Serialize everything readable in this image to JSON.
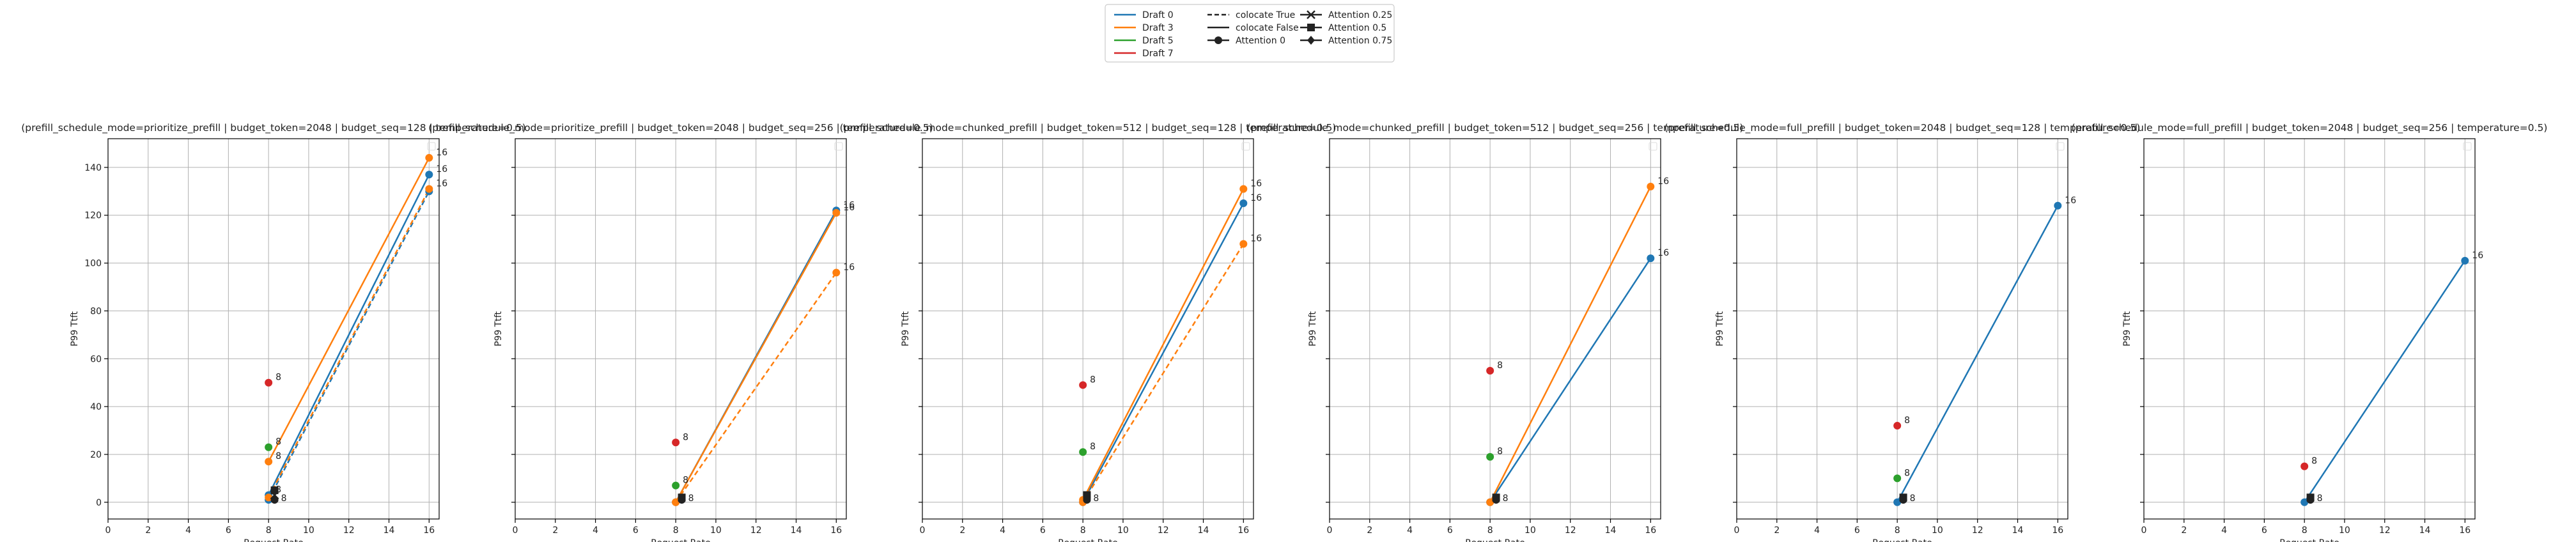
{
  "legend": {
    "placement": "top-center",
    "columns": [
      [
        {
          "label": "Draft 0",
          "kind": "color",
          "color": "#1f77b4"
        },
        {
          "label": "Draft 3",
          "kind": "color",
          "color": "#ff7f0e"
        },
        {
          "label": "Draft 5",
          "kind": "color",
          "color": "#2ca02c"
        },
        {
          "label": "Draft 7",
          "kind": "color",
          "color": "#d62728"
        }
      ],
      [
        {
          "label": "colocate True",
          "kind": "dash"
        },
        {
          "label": "colocate False",
          "kind": "solid"
        },
        {
          "label": "Attention 0",
          "kind": "marker",
          "marker": "circle"
        }
      ],
      [
        {
          "label": "Attention 0.25",
          "kind": "marker",
          "marker": "x"
        },
        {
          "label": "Attention 0.5",
          "kind": "marker",
          "marker": "square"
        },
        {
          "label": "Attention 0.75",
          "kind": "marker",
          "marker": "diamond"
        }
      ]
    ]
  },
  "colors": {
    "draft0": "#1f77b4",
    "draft3": "#ff7f0e",
    "draft5": "#2ca02c",
    "draft7": "#d62728",
    "attention": "#222222"
  },
  "chart_data": [
    {
      "type": "line",
      "title": "(prefill_schedule_mode=prioritize_prefill | budget_token=2048 | budget_seq=128 | temperature=0.5)",
      "xlabel": "Request Rate",
      "ylabel": "P99 Ttft",
      "xlim": [
        0,
        16.5
      ],
      "ylim": [
        -7,
        152
      ],
      "xticks": [
        0,
        2,
        4,
        6,
        8,
        10,
        12,
        14,
        16
      ],
      "yticks": [
        0,
        20,
        40,
        60,
        80,
        100,
        120,
        140
      ],
      "grid": true,
      "series": [
        {
          "draft": 0,
          "colocate": false,
          "color": "#1f77b4",
          "points": [
            {
              "x": 8,
              "y": 3,
              "label": "8"
            },
            {
              "x": 16,
              "y": 137,
              "label": "16"
            }
          ]
        },
        {
          "draft": 0,
          "colocate": true,
          "color": "#1f77b4",
          "points": [
            {
              "x": 8,
              "y": 1
            },
            {
              "x": 16,
              "y": 130
            }
          ]
        },
        {
          "draft": 3,
          "colocate": false,
          "color": "#ff7f0e",
          "points": [
            {
              "x": 8,
              "y": 17,
              "label": "8"
            },
            {
              "x": 16,
              "y": 144,
              "label": "16"
            }
          ]
        },
        {
          "draft": 3,
          "colocate": true,
          "color": "#ff7f0e",
          "points": [
            {
              "x": 8,
              "y": 2
            },
            {
              "x": 16,
              "y": 131,
              "label": "16"
            }
          ]
        },
        {
          "draft": 5,
          "color": "#2ca02c",
          "points": [
            {
              "x": 8,
              "y": 23,
              "label": "8"
            }
          ]
        },
        {
          "draft": 7,
          "color": "#d62728",
          "points": [
            {
              "x": 8,
              "y": 50,
              "label": "8"
            }
          ]
        }
      ],
      "attention_points": [
        {
          "x": 8.3,
          "y": 1,
          "marker": "circle",
          "label": "8"
        },
        {
          "x": 8.3,
          "y": 3,
          "marker": "x"
        },
        {
          "x": 8.3,
          "y": 5,
          "marker": "square"
        }
      ]
    },
    {
      "type": "line",
      "title": "(prefill_schedule_mode=prioritize_prefill | budget_token=2048 | budget_seq=256 | temperature=0.5)",
      "xlabel": "Request Rate",
      "ylabel": "P99 Ttft",
      "xlim": [
        0,
        16.5
      ],
      "ylim": [
        -7,
        152
      ],
      "xticks": [
        0,
        2,
        4,
        6,
        8,
        10,
        12,
        14,
        16
      ],
      "yticks": [
        0,
        20,
        40,
        60,
        80,
        100,
        120,
        140
      ],
      "grid": true,
      "series": [
        {
          "draft": 0,
          "colocate": false,
          "color": "#1f77b4",
          "points": [
            {
              "x": 8,
              "y": 0
            },
            {
              "x": 16,
              "y": 122,
              "label": "16"
            }
          ]
        },
        {
          "draft": 3,
          "colocate": false,
          "color": "#ff7f0e",
          "points": [
            {
              "x": 8,
              "y": 0
            },
            {
              "x": 16,
              "y": 121,
              "label": "16"
            }
          ]
        },
        {
          "draft": 3,
          "colocate": true,
          "color": "#ff7f0e",
          "points": [
            {
              "x": 8,
              "y": 0
            },
            {
              "x": 16,
              "y": 96,
              "label": "16"
            }
          ]
        },
        {
          "draft": 5,
          "color": "#2ca02c",
          "points": [
            {
              "x": 8,
              "y": 7,
              "label": "8"
            }
          ]
        },
        {
          "draft": 7,
          "color": "#d62728",
          "points": [
            {
              "x": 8,
              "y": 25,
              "label": "8"
            }
          ]
        }
      ],
      "attention_points": [
        {
          "x": 8.3,
          "y": 1,
          "marker": "circle",
          "label": "8"
        },
        {
          "x": 8.3,
          "y": 2,
          "marker": "square"
        }
      ]
    },
    {
      "type": "line",
      "title": "(prefill_schedule_mode=chunked_prefill | budget_token=512 | budget_seq=128 | temperature=0.5)",
      "xlabel": "Request Rate",
      "ylabel": "P99 Ttft",
      "xlim": [
        0,
        16.5
      ],
      "ylim": [
        -7,
        152
      ],
      "xticks": [
        0,
        2,
        4,
        6,
        8,
        10,
        12,
        14,
        16
      ],
      "yticks": [
        0,
        20,
        40,
        60,
        80,
        100,
        120,
        140
      ],
      "grid": true,
      "series": [
        {
          "draft": 0,
          "colocate": false,
          "color": "#1f77b4",
          "points": [
            {
              "x": 8,
              "y": 0
            },
            {
              "x": 16,
              "y": 125,
              "label": "16"
            }
          ]
        },
        {
          "draft": 3,
          "colocate": false,
          "color": "#ff7f0e",
          "points": [
            {
              "x": 8,
              "y": 1
            },
            {
              "x": 16,
              "y": 131,
              "label": "16"
            }
          ]
        },
        {
          "draft": 3,
          "colocate": true,
          "color": "#ff7f0e",
          "points": [
            {
              "x": 8,
              "y": 0
            },
            {
              "x": 16,
              "y": 108,
              "label": "16"
            }
          ]
        },
        {
          "draft": 5,
          "color": "#2ca02c",
          "points": [
            {
              "x": 8,
              "y": 21,
              "label": "8"
            }
          ]
        },
        {
          "draft": 7,
          "color": "#d62728",
          "points": [
            {
              "x": 8,
              "y": 49,
              "label": "8"
            }
          ]
        }
      ],
      "attention_points": [
        {
          "x": 8.2,
          "y": 1,
          "marker": "circle",
          "label": "8"
        },
        {
          "x": 8.2,
          "y": 3,
          "marker": "square"
        }
      ]
    },
    {
      "type": "line",
      "title": "(prefill_schedule_mode=chunked_prefill | budget_token=512 | budget_seq=256 | temperature=0.5)",
      "xlabel": "Request Rate",
      "ylabel": "P99 Ttft",
      "xlim": [
        0,
        16.5
      ],
      "ylim": [
        -7,
        152
      ],
      "xticks": [
        0,
        2,
        4,
        6,
        8,
        10,
        12,
        14,
        16
      ],
      "yticks": [
        0,
        20,
        40,
        60,
        80,
        100,
        120,
        140
      ],
      "grid": true,
      "series": [
        {
          "draft": 0,
          "colocate": false,
          "color": "#1f77b4",
          "points": [
            {
              "x": 8,
              "y": 0
            },
            {
              "x": 16,
              "y": 102,
              "label": "16"
            }
          ]
        },
        {
          "draft": 3,
          "colocate": false,
          "color": "#ff7f0e",
          "points": [
            {
              "x": 8,
              "y": 0
            },
            {
              "x": 16,
              "y": 132,
              "label": "16"
            }
          ]
        },
        {
          "draft": 5,
          "color": "#2ca02c",
          "points": [
            {
              "x": 8,
              "y": 19,
              "label": "8"
            }
          ]
        },
        {
          "draft": 7,
          "color": "#d62728",
          "points": [
            {
              "x": 8,
              "y": 55,
              "label": "8"
            }
          ]
        }
      ],
      "attention_points": [
        {
          "x": 8.3,
          "y": 1,
          "marker": "circle",
          "label": "8"
        },
        {
          "x": 8.3,
          "y": 2,
          "marker": "square"
        }
      ]
    },
    {
      "type": "line",
      "title": "(prefill_schedule_mode=full_prefill | budget_token=2048 | budget_seq=128 | temperature=0.5)",
      "xlabel": "Request Rate",
      "ylabel": "P99 Ttft",
      "xlim": [
        0,
        16.5
      ],
      "ylim": [
        -7,
        152
      ],
      "xticks": [
        0,
        2,
        4,
        6,
        8,
        10,
        12,
        14,
        16
      ],
      "yticks": [
        0,
        20,
        40,
        60,
        80,
        100,
        120,
        140
      ],
      "grid": true,
      "series": [
        {
          "draft": 0,
          "colocate": false,
          "color": "#1f77b4",
          "points": [
            {
              "x": 8,
              "y": 0
            },
            {
              "x": 16,
              "y": 124,
              "label": "16"
            }
          ]
        },
        {
          "draft": 5,
          "color": "#2ca02c",
          "points": [
            {
              "x": 8,
              "y": 10,
              "label": "8"
            }
          ]
        },
        {
          "draft": 7,
          "color": "#d62728",
          "points": [
            {
              "x": 8,
              "y": 32,
              "label": "8"
            }
          ]
        }
      ],
      "attention_points": [
        {
          "x": 8.3,
          "y": 1,
          "marker": "circle",
          "label": "8"
        },
        {
          "x": 8.3,
          "y": 2,
          "marker": "square"
        }
      ]
    },
    {
      "type": "line",
      "title": "(prefill_schedule_mode=full_prefill | budget_token=2048 | budget_seq=256 | temperature=0.5)",
      "xlabel": "Request Rate",
      "ylabel": "P99 Ttft",
      "xlim": [
        0,
        16.5
      ],
      "ylim": [
        -7,
        152
      ],
      "xticks": [
        0,
        2,
        4,
        6,
        8,
        10,
        12,
        14,
        16
      ],
      "yticks": [
        0,
        20,
        40,
        60,
        80,
        100,
        120,
        140
      ],
      "grid": true,
      "series": [
        {
          "draft": 0,
          "colocate": false,
          "color": "#1f77b4",
          "points": [
            {
              "x": 8,
              "y": 0
            },
            {
              "x": 16,
              "y": 101,
              "label": "16"
            }
          ]
        },
        {
          "draft": 7,
          "color": "#d62728",
          "points": [
            {
              "x": 8,
              "y": 15,
              "label": "8"
            }
          ]
        }
      ],
      "attention_points": [
        {
          "x": 8.3,
          "y": 1,
          "marker": "circle",
          "label": "8"
        },
        {
          "x": 8.3,
          "y": 2,
          "marker": "square"
        }
      ]
    }
  ]
}
